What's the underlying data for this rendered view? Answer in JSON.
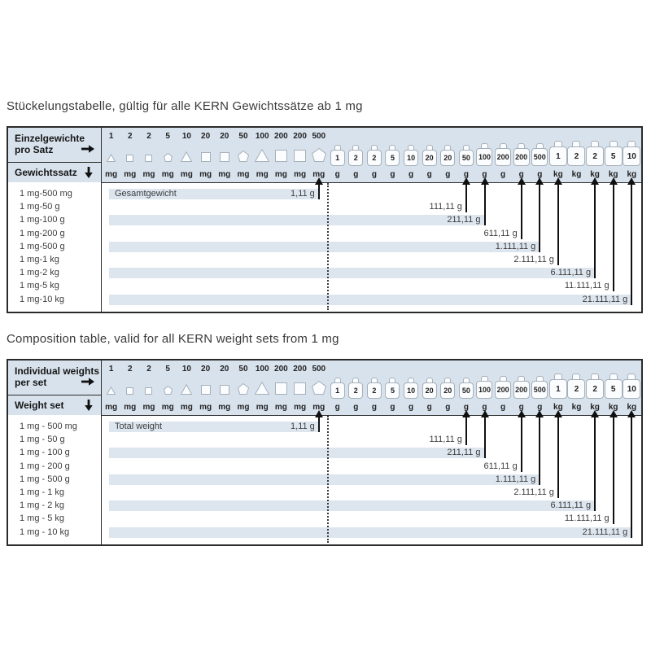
{
  "colors": {
    "band": "#d8e2ed",
    "bar": "#dde6ef",
    "table_border": "#2b2b2b",
    "arrow_line": "#101010",
    "shape_stroke": "#a6b0ba",
    "shape_fill": "#fbfcfe",
    "text": "#3d3d3d",
    "header_text": "#161616"
  },
  "columns": [
    {
      "value": "1",
      "unit": "mg",
      "shape": "triangle",
      "size": "s"
    },
    {
      "value": "2",
      "unit": "mg",
      "shape": "square",
      "size": "s"
    },
    {
      "value": "2",
      "unit": "mg",
      "shape": "square",
      "size": "s"
    },
    {
      "value": "5",
      "unit": "mg",
      "shape": "pentagon",
      "size": "s"
    },
    {
      "value": "10",
      "unit": "mg",
      "shape": "triangle",
      "size": "m"
    },
    {
      "value": "20",
      "unit": "mg",
      "shape": "square",
      "size": "m"
    },
    {
      "value": "20",
      "unit": "mg",
      "shape": "square",
      "size": "m"
    },
    {
      "value": "50",
      "unit": "mg",
      "shape": "pentagon",
      "size": "m"
    },
    {
      "value": "100",
      "unit": "mg",
      "shape": "triangle",
      "size": "l"
    },
    {
      "value": "200",
      "unit": "mg",
      "shape": "square",
      "size": "l"
    },
    {
      "value": "200",
      "unit": "mg",
      "shape": "square",
      "size": "l"
    },
    {
      "value": "500",
      "unit": "mg",
      "shape": "pentagon",
      "size": "l"
    },
    {
      "value": "1",
      "unit": "g",
      "shape": "weight",
      "size": "s"
    },
    {
      "value": "2",
      "unit": "g",
      "shape": "weight",
      "size": "s"
    },
    {
      "value": "2",
      "unit": "g",
      "shape": "weight",
      "size": "s"
    },
    {
      "value": "5",
      "unit": "g",
      "shape": "weight",
      "size": "s"
    },
    {
      "value": "10",
      "unit": "g",
      "shape": "weight",
      "size": "s"
    },
    {
      "value": "20",
      "unit": "g",
      "shape": "weight",
      "size": "s"
    },
    {
      "value": "20",
      "unit": "g",
      "shape": "weight",
      "size": "s"
    },
    {
      "value": "50",
      "unit": "g",
      "shape": "weight",
      "size": "s"
    },
    {
      "value": "100",
      "unit": "g",
      "shape": "weight",
      "size": "m"
    },
    {
      "value": "200",
      "unit": "g",
      "shape": "weight",
      "size": "m"
    },
    {
      "value": "200",
      "unit": "g",
      "shape": "weight",
      "size": "m"
    },
    {
      "value": "500",
      "unit": "g",
      "shape": "weight",
      "size": "m"
    },
    {
      "value": "1",
      "unit": "kg",
      "shape": "weight",
      "size": "l"
    },
    {
      "value": "2",
      "unit": "kg",
      "shape": "weight",
      "size": "l"
    },
    {
      "value": "2",
      "unit": "kg",
      "shape": "weight",
      "size": "l"
    },
    {
      "value": "5",
      "unit": "kg",
      "shape": "weight",
      "size": "l"
    },
    {
      "value": "10",
      "unit": "kg",
      "shape": "weight",
      "size": "l"
    }
  ],
  "tables": [
    {
      "id": "de",
      "title": "Stückelungstabelle, gültig für alle KERN Gewichtssätze ab 1 mg",
      "header": {
        "col1_lines": [
          "Einzelgewichte",
          "pro Satz"
        ],
        "col2_label": "Gewichtssatz"
      },
      "total_label": "Gesamtgewicht",
      "rows": [
        {
          "label": "1 mg-500 mg",
          "value": "1,11 g",
          "target_col": 11
        },
        {
          "label": "1 mg-50 g",
          "value": "111,11 g",
          "target_col": 19
        },
        {
          "label": "1 mg-100 g",
          "value": "211,11 g",
          "target_col": 20
        },
        {
          "label": "1 mg-200 g",
          "value": "611,11 g",
          "target_col": 22
        },
        {
          "label": "1 mg-500 g",
          "value": "1.111,11 g",
          "target_col": 23
        },
        {
          "label": "1 mg-1 kg",
          "value": "2.111,11 g",
          "target_col": 24
        },
        {
          "label": "1 mg-2 kg",
          "value": "6.111,11 g",
          "target_col": 26
        },
        {
          "label": "1 mg-5 kg",
          "value": "11.111,11 g",
          "target_col": 27
        },
        {
          "label": "1 mg-10 kg",
          "value": "21.111,11 g",
          "target_col": 28
        }
      ]
    },
    {
      "id": "en",
      "title": "Composition table, valid for all KERN weight sets from 1 mg",
      "header": {
        "col1_lines": [
          "Individual weights",
          "per set"
        ],
        "col2_label": "Weight set"
      },
      "total_label": "Total weight",
      "rows": [
        {
          "label": "1 mg - 500 mg",
          "value": "1,11 g",
          "target_col": 11
        },
        {
          "label": "1 mg - 50 g",
          "value": "111,11 g",
          "target_col": 19
        },
        {
          "label": "1 mg - 100 g",
          "value": "211,11 g",
          "target_col": 20
        },
        {
          "label": "1 mg - 200 g",
          "value": "611,11 g",
          "target_col": 22
        },
        {
          "label": "1 mg - 500 g",
          "value": "1.111,11 g",
          "target_col": 23
        },
        {
          "label": "1 mg - 1 kg",
          "value": "2.111,11 g",
          "target_col": 24
        },
        {
          "label": "1 mg - 2 kg",
          "value": "6.111,11 g",
          "target_col": 26
        },
        {
          "label": "1 mg - 5 kg",
          "value": "11.111,11 g",
          "target_col": 27
        },
        {
          "label": "1 mg - 10 kg",
          "value": "21.111,11 g",
          "target_col": 28
        }
      ]
    }
  ]
}
